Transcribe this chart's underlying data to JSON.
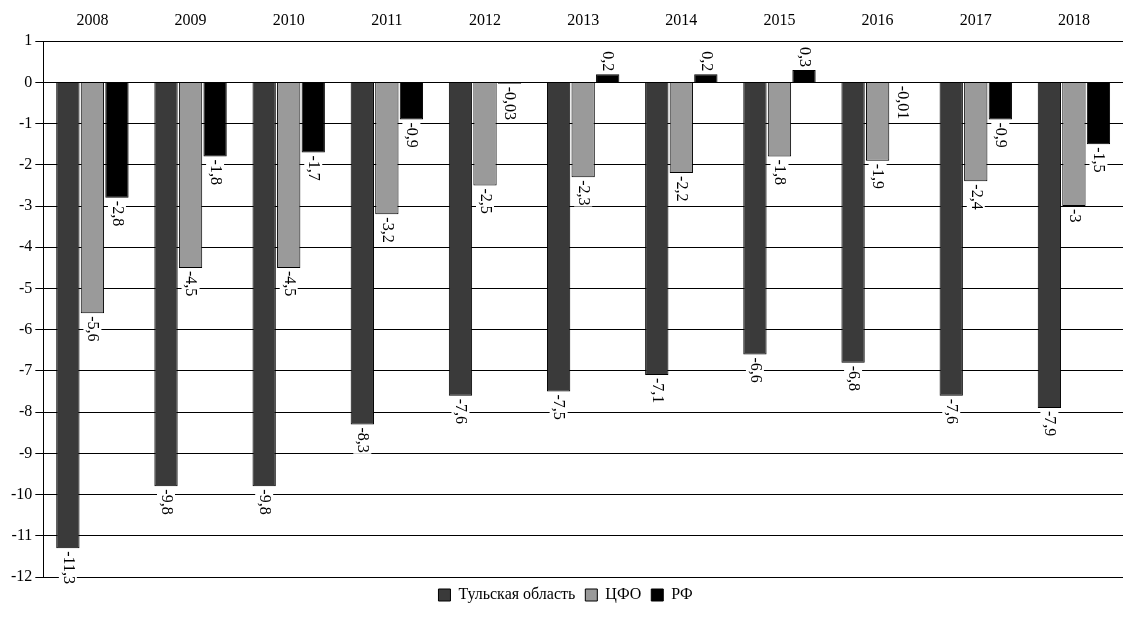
{
  "chart_data": {
    "type": "bar",
    "categories": [
      "2008",
      "2009",
      "2010",
      "2011",
      "2012",
      "2013",
      "2014",
      "2015",
      "2016",
      "2017",
      "2018"
    ],
    "series": [
      {
        "name": "Тульская область",
        "color": "#3a3a3a",
        "values": [
          -11.3,
          -9.8,
          -9.8,
          -8.3,
          -7.6,
          -7.5,
          -7.1,
          -6.6,
          -6.8,
          -7.6,
          -7.9
        ],
        "value_labels": [
          "-11,3",
          "-9,8",
          "-9,8",
          "-8,3",
          "-7,6",
          "-7,5",
          "-7,1",
          "-6,6",
          "-6,8",
          "-7,6",
          "-7,9"
        ]
      },
      {
        "name": "ЦФО",
        "color": "#9a9a9a",
        "values": [
          -5.6,
          -4.5,
          -4.5,
          -3.2,
          -2.5,
          -2.3,
          -2.2,
          -1.8,
          -1.9,
          -2.4,
          -3
        ],
        "value_labels": [
          "-5,6",
          "-4,5",
          "-4,5",
          "-3,2",
          "-2,5",
          "-2,3",
          "-2,2",
          "-1,8",
          "-1,9",
          "-2,4",
          "-3"
        ]
      },
      {
        "name": "РФ",
        "color": "#000000",
        "values": [
          -2.8,
          -1.8,
          -1.7,
          -0.9,
          -0.03,
          0.2,
          0.2,
          0.3,
          -0.01,
          -0.9,
          -1.5
        ],
        "value_labels": [
          "-2,8",
          "-1,8",
          "-1,7",
          "-0,9",
          "-0,03",
          "0,2",
          "0,2",
          "0,3",
          "-0,01",
          "-0,9",
          "-1,5"
        ]
      }
    ],
    "ylim": [
      -12,
      1
    ],
    "yticks": [
      -12,
      -11,
      -10,
      -9,
      -8,
      -7,
      -6,
      -5,
      -4,
      -3,
      -2,
      -1,
      0,
      1
    ],
    "grid": "y",
    "legend": "bottom"
  }
}
